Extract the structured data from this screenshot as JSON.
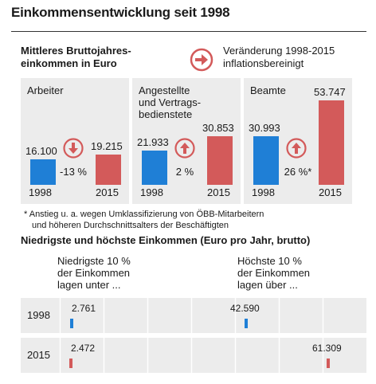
{
  "title": "Einkommensentwicklung seit 1998",
  "legend": {
    "left_line1": "Mittleres Bruttojahres-",
    "left_line2": "einkommen in Euro",
    "right_line1": "Veränderung 1998-2015",
    "right_line2": "inflationsbereinigt",
    "colors": {
      "blue": "#1f7fd6",
      "red": "#d35a5a"
    }
  },
  "panels": [
    {
      "label_lines": [
        "Arbeiter"
      ],
      "v1998_text": "16.100",
      "v2015_text": "19.215",
      "change": "-13 %",
      "direction": "down"
    },
    {
      "label_lines": [
        "Angestellte",
        "und Vertrags-",
        "bedienstete"
      ],
      "v1998_text": "21.933",
      "v2015_text": "30.853",
      "change": "2 %",
      "direction": "up"
    },
    {
      "label_lines": [
        "Beamte"
      ],
      "v1998_text": "30.993",
      "v2015_text": "53.747",
      "change": "26 %*",
      "direction": "up"
    }
  ],
  "year1998": "1998",
  "year2015": "2015",
  "note_line1": "* Anstieg u. a. wegen Umklassifizierung von ÖBB-Mitarbeitern",
  "note_line2": "und höheren Durchschnittsalters der Beschäftigten",
  "section2_title": "Niedrigste und höchste Einkommen (Euro pro Jahr, brutto)",
  "col_low": [
    "Niedrigste 10 %",
    "der Einkommen",
    "lagen unter ..."
  ],
  "col_high": [
    "Höchste 10 %",
    "der Einkommen",
    "lagen über ..."
  ],
  "rows": [
    {
      "year": "1998",
      "low_text": "2.761",
      "high_text": "42.590",
      "low": 2761,
      "high": 42590,
      "color": "blue"
    },
    {
      "year": "2015",
      "low_text": "2.472",
      "high_text": "61.309",
      "low": 2472,
      "high": 61309,
      "color": "red"
    }
  ],
  "chart_data": [
    {
      "type": "bar",
      "title": "Einkommensentwicklung seit 1998",
      "categories": [
        "Arbeiter",
        "Angestellte und Vertragsbedienstete",
        "Beamte"
      ],
      "series": [
        {
          "name": "1998",
          "values": [
            16100,
            21933,
            30993
          ]
        },
        {
          "name": "2015",
          "values": [
            19215,
            30853,
            53747
          ]
        }
      ],
      "changes": [
        "-13 %",
        "2 %",
        "26 %*"
      ],
      "ylim": [
        0,
        55000
      ]
    },
    {
      "type": "scatter",
      "title": "Niedrigste und höchste Einkommen (Euro pro Jahr, brutto)",
      "categories": [
        "1998",
        "2015"
      ],
      "series": [
        {
          "name": "Niedrigste 10 %",
          "values": [
            2761,
            2472
          ]
        },
        {
          "name": "Höchste 10 %",
          "values": [
            42590,
            61309
          ]
        }
      ],
      "xlim": [
        0,
        70000
      ]
    }
  ]
}
